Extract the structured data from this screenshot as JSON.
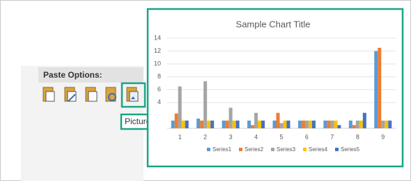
{
  "paste_options": {
    "header": "Paste Options:",
    "tooltip": "Picture (U)"
  },
  "chart_data": {
    "type": "bar",
    "title": "Sample Chart Title",
    "categories": [
      "1",
      "2",
      "3",
      "4",
      "5",
      "6",
      "7",
      "8",
      "9"
    ],
    "series": [
      {
        "name": "Series1",
        "color": "#5b9bd5",
        "values": [
          1.2,
          1.5,
          1.2,
          1.2,
          1.2,
          1.2,
          1.2,
          1.2,
          12
        ]
      },
      {
        "name": "Series2",
        "color": "#ed7d31",
        "values": [
          2.3,
          1.2,
          1.2,
          0.5,
          2.4,
          1.2,
          1.2,
          0.5,
          12.5
        ]
      },
      {
        "name": "Series3",
        "color": "#a5a5a5",
        "values": [
          6.5,
          7.3,
          3.2,
          2.4,
          0.8,
          1.2,
          1.2,
          1.2,
          1.2
        ]
      },
      {
        "name": "Series4",
        "color": "#ffc000",
        "values": [
          1.2,
          1.2,
          1.2,
          1.2,
          1.2,
          1.2,
          1.2,
          1.2,
          1.2
        ]
      },
      {
        "name": "Series5",
        "color": "#4472c4",
        "values": [
          1.2,
          1.2,
          1.2,
          1.2,
          1.2,
          1.2,
          0.5,
          2.4,
          1.2
        ]
      }
    ],
    "ylim": [
      0,
      14
    ],
    "yticks": [
      4,
      6,
      8,
      10,
      12,
      14
    ],
    "grid": true
  }
}
